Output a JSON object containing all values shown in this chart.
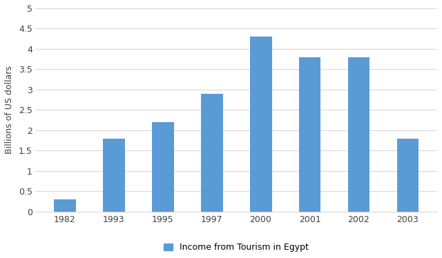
{
  "categories": [
    "1982",
    "1993",
    "1995",
    "1997",
    "2000",
    "2001",
    "2002",
    "2003"
  ],
  "values": [
    0.3,
    1.8,
    2.2,
    2.9,
    4.3,
    3.8,
    3.8,
    1.8
  ],
  "bar_color": "#5b9bd5",
  "ylabel": "Billions of US dollars",
  "ylim": [
    0,
    5
  ],
  "yticks": [
    0,
    0.5,
    1,
    1.5,
    2,
    2.5,
    3,
    3.5,
    4,
    4.5,
    5
  ],
  "legend_label": "Income from Tourism in Egypt",
  "background_color": "#ffffff",
  "grid_color": "#d9d9d9",
  "bar_width": 0.45
}
